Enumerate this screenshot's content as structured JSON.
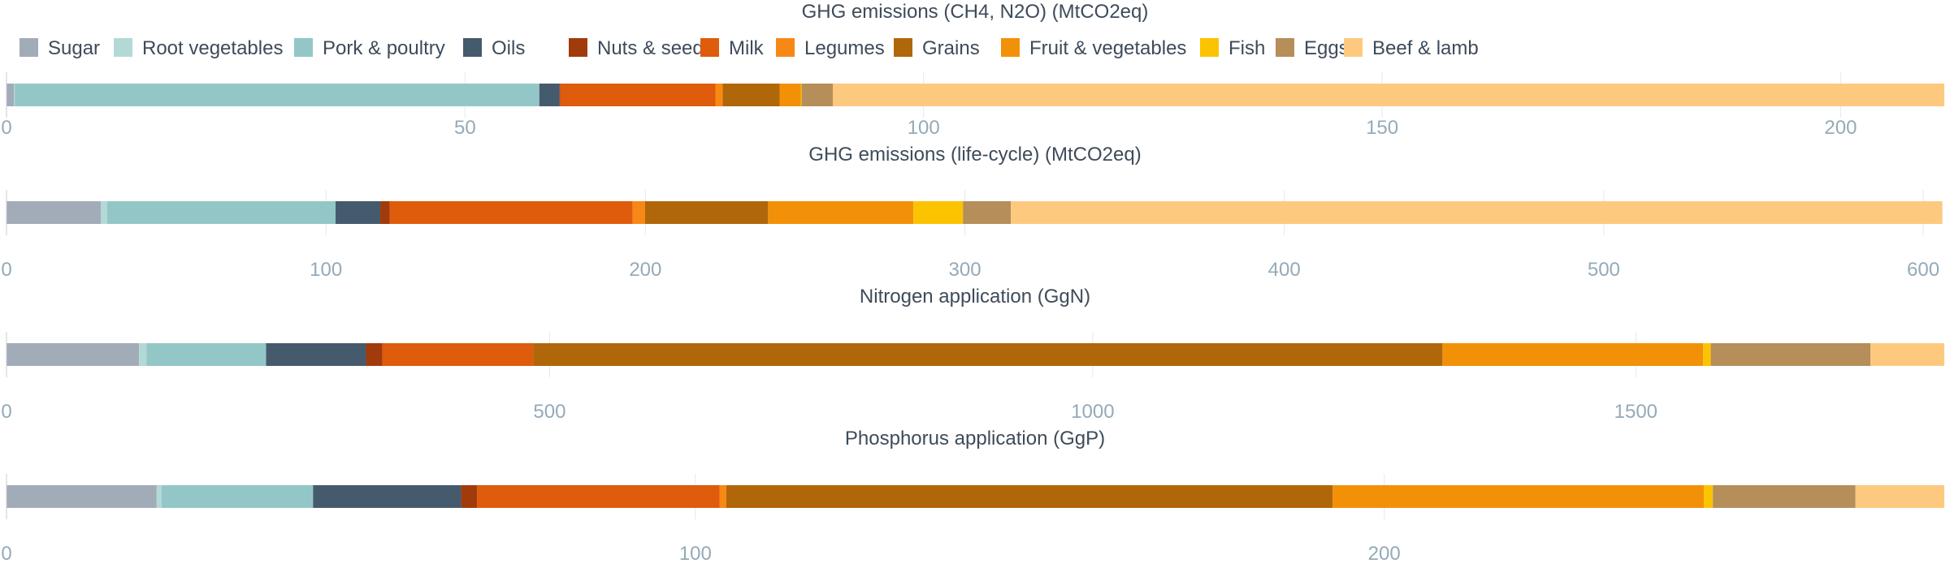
{
  "legend": [
    {
      "name": "Sugar",
      "color": "#a2acb8"
    },
    {
      "name": "Root vegetables",
      "color": "#b3d9d6"
    },
    {
      "name": "Pork & poultry",
      "color": "#93c7c7"
    },
    {
      "name": "Oils",
      "color": "#465a6e"
    },
    {
      "name": "Nuts & seeds",
      "color": "#a13b0b"
    },
    {
      "name": "Milk",
      "color": "#de5c0c"
    },
    {
      "name": "Legumes",
      "color": "#f88815"
    },
    {
      "name": "Grains",
      "color": "#b0670a"
    },
    {
      "name": "Fruit & vegetables",
      "color": "#f29108"
    },
    {
      "name": "Fish",
      "color": "#fcc300"
    },
    {
      "name": "Eggs",
      "color": "#b68e5a"
    },
    {
      "name": "Beef & lamb",
      "color": "#fdc97f"
    }
  ],
  "chart_data": [
    {
      "type": "bar",
      "orientation": "horizontal",
      "stacked": true,
      "title": "GHG emissions (CH4, N2O) (MtCO2eq)",
      "categories": [
        "Sugar",
        "Root vegetables",
        "Pork & poultry",
        "Oils",
        "Nuts & seeds",
        "Milk",
        "Legumes",
        "Grains",
        "Fruit & vegetables",
        "Fish",
        "Eggs",
        "Beef & lamb"
      ],
      "values": [
        0.8,
        0.1,
        57.2,
        2.2,
        0.1,
        16.9,
        0.8,
        6.2,
        2.3,
        0.1,
        3.4,
        121.2
      ],
      "xlim": [
        0,
        211.3
      ],
      "ticks": [
        0,
        50,
        100,
        150,
        200
      ],
      "grid": true
    },
    {
      "type": "bar",
      "orientation": "horizontal",
      "stacked": true,
      "title": "GHG emissions (life-cycle) (MtCO2eq)",
      "categories": [
        "Sugar",
        "Root vegetables",
        "Pork & poultry",
        "Oils",
        "Nuts & seeds",
        "Milk",
        "Legumes",
        "Grains",
        "Fruit & vegetables",
        "Fish",
        "Eggs",
        "Beef & lamb"
      ],
      "values": [
        29.5,
        2.0,
        71.5,
        14.0,
        3.0,
        76.0,
        3.9,
        38.5,
        45.5,
        15.5,
        15.0,
        291.6
      ],
      "xlim": [
        0,
        606.6
      ],
      "ticks": [
        0,
        100,
        200,
        300,
        400,
        500,
        600
      ],
      "grid": true
    },
    {
      "type": "bar",
      "orientation": "horizontal",
      "stacked": true,
      "title": "Nitrogen application (GgN)",
      "categories": [
        "Sugar",
        "Root vegetables",
        "Pork & poultry",
        "Oils",
        "Nuts & seeds",
        "Milk",
        "Legumes",
        "Grains",
        "Fruit & vegetables",
        "Fish",
        "Eggs",
        "Beef & lamb"
      ],
      "values": [
        122,
        7,
        110,
        92,
        15,
        139,
        0,
        837,
        240,
        7,
        147,
        68
      ],
      "xlim": [
        0,
        1784
      ],
      "ticks": [
        0,
        500,
        1000,
        1500
      ],
      "grid": true
    },
    {
      "type": "bar",
      "orientation": "horizontal",
      "stacked": true,
      "title": "Phosphorus application (GgP)",
      "categories": [
        "Sugar",
        "Root vegetables",
        "Pork & poultry",
        "Oils",
        "Nuts & seeds",
        "Milk",
        "Legumes",
        "Grains",
        "Fruit & vegetables",
        "Fish",
        "Eggs",
        "Beef & lamb"
      ],
      "values": [
        21.8,
        0.7,
        22.0,
        21.5,
        2.3,
        35.2,
        1.0,
        88.0,
        53.9,
        1.3,
        20.7,
        12.9
      ],
      "xlim": [
        0,
        281.3
      ],
      "ticks": [
        0,
        100,
        200
      ],
      "grid": true
    }
  ]
}
